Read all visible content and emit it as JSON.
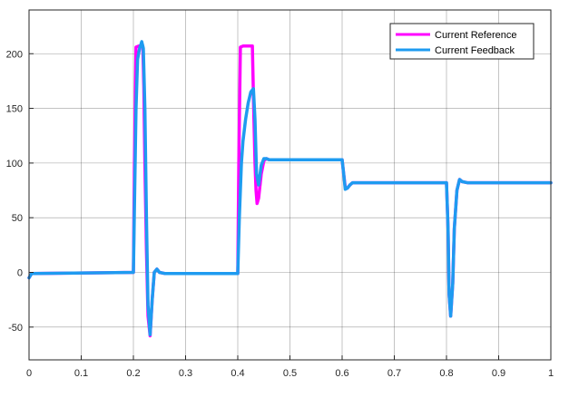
{
  "chart_data": {
    "type": "line",
    "title": "",
    "xlabel": "",
    "ylabel": "",
    "xlim": [
      0,
      1
    ],
    "ylim": [
      -80,
      240
    ],
    "x_ticks": [
      0,
      0.1,
      0.2,
      0.3,
      0.4,
      0.5,
      0.6,
      0.7,
      0.8,
      0.9,
      1
    ],
    "x_tick_labels": [
      "0",
      "0.1",
      "0.2",
      "0.3",
      "0.4",
      "0.5",
      "0.6",
      "0.7",
      "0.8",
      "0.9",
      "1"
    ],
    "y_ticks": [
      -50,
      0,
      50,
      100,
      150,
      200
    ],
    "y_tick_labels": [
      "-50",
      "0",
      "50",
      "100",
      "150",
      "200"
    ],
    "grid": true,
    "legend_position": "top-right",
    "colors": {
      "reference": "#ff00ff",
      "feedback": "#1e9bf0",
      "grid": "#262626",
      "axes": "#262626"
    },
    "series": [
      {
        "name": "Current Reference",
        "color": "#ff00ff",
        "x": [
          0,
          0.005,
          0.2,
          0.202,
          0.205,
          0.21,
          0.218,
          0.22,
          0.222,
          0.225,
          0.228,
          0.232,
          0.236,
          0.24,
          0.245,
          0.25,
          0.26,
          0.27,
          0.3,
          0.4,
          0.402,
          0.405,
          0.41,
          0.428,
          0.431,
          0.433,
          0.435,
          0.437,
          0.44,
          0.445,
          0.45,
          0.455,
          0.46,
          0.47,
          0.5,
          0.6,
          0.603,
          0.606,
          0.61,
          0.615,
          0.62,
          0.63,
          0.7,
          0.8,
          0.803,
          0.805,
          0.808,
          0.812,
          0.815,
          0.82,
          0.825,
          0.83,
          0.84,
          0.9,
          1
        ],
        "y": [
          -5,
          -1,
          0,
          100,
          206,
          207,
          207,
          170,
          100,
          20,
          -40,
          -58,
          -25,
          0,
          3,
          0,
          -1,
          -1,
          -1,
          -1,
          100,
          206,
          207,
          207,
          140,
          100,
          75,
          63,
          68,
          90,
          102,
          104,
          103,
          103,
          103,
          103,
          90,
          78,
          77,
          80,
          82,
          82,
          82,
          82,
          40,
          -20,
          -40,
          -10,
          40,
          75,
          85,
          83,
          82,
          82,
          82
        ]
      },
      {
        "name": "Current Feedback",
        "color": "#1e9bf0",
        "x": [
          0,
          0.005,
          0.2,
          0.202,
          0.205,
          0.208,
          0.212,
          0.216,
          0.219,
          0.222,
          0.225,
          0.228,
          0.232,
          0.236,
          0.24,
          0.245,
          0.25,
          0.26,
          0.27,
          0.3,
          0.4,
          0.403,
          0.407,
          0.41,
          0.415,
          0.42,
          0.425,
          0.43,
          0.433,
          0.436,
          0.44,
          0.445,
          0.45,
          0.455,
          0.46,
          0.47,
          0.5,
          0.6,
          0.603,
          0.606,
          0.61,
          0.615,
          0.62,
          0.63,
          0.7,
          0.8,
          0.803,
          0.805,
          0.808,
          0.812,
          0.815,
          0.82,
          0.825,
          0.83,
          0.84,
          0.9,
          1
        ],
        "y": [
          -5,
          -1,
          0,
          60,
          150,
          195,
          205,
          211,
          205,
          150,
          50,
          -30,
          -57,
          -25,
          0,
          3,
          0,
          -1,
          -1,
          -1,
          -1,
          50,
          100,
          120,
          140,
          155,
          165,
          168,
          140,
          90,
          80,
          98,
          104,
          104,
          103,
          103,
          103,
          103,
          90,
          76,
          77,
          80,
          82,
          82,
          82,
          82,
          40,
          -20,
          -40,
          -10,
          40,
          75,
          85,
          83,
          82,
          82,
          82
        ]
      }
    ]
  }
}
